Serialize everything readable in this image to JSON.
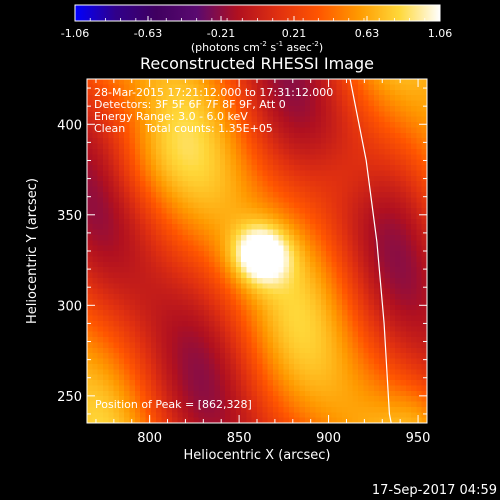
{
  "chart_data": {
    "type": "heatmap",
    "title": "Reconstructed RHESSI Image",
    "xlabel": "Heliocentric X (arcsec)",
    "ylabel": "Heliocentric Y (arcsec)",
    "xlim": [
      765,
      955
    ],
    "ylim": [
      235,
      425
    ],
    "xticks": [
      800,
      850,
      900,
      950
    ],
    "yticks": [
      250,
      300,
      350,
      400
    ],
    "colorbar": {
      "min": -1.06,
      "max": 1.06,
      "ticks": [
        "-1.06",
        "-0.63",
        "-0.21",
        "0.21",
        "0.63",
        "1.06"
      ],
      "unit_main": "(photons cm",
      "unit_sup1": "-2",
      "unit_mid": " s",
      "unit_sup2": "-1",
      "unit_end": " asec",
      "unit_sup3": "-2",
      "unit_close": ")",
      "colormap": [
        "#0000ff",
        "#30008a",
        "#400060",
        "#5a0a70",
        "#b01020",
        "#e03010",
        "#ff5500",
        "#ff9a00",
        "#ffd83a",
        "#ffffff"
      ]
    },
    "annotations": {
      "time_range": "28-Mar-2015 17:21:12.000 to 17:31:12.000",
      "detectors": "Detectors: 3F 5F 6F 7F 8F 9F, Att 0",
      "energy": "Energy Range: 3.0 - 6.0 keV",
      "method": "Clean",
      "counts": "Total counts: 1.35E+05",
      "peak": "Position of Peak = [862,328]"
    },
    "peak": {
      "x": 862,
      "y": 328,
      "value": 1.06
    },
    "limb": [
      [
        912,
        425
      ],
      [
        921,
        380
      ],
      [
        927,
        335
      ],
      [
        931,
        290
      ],
      [
        934,
        240
      ],
      [
        935,
        235
      ]
    ]
  },
  "footer": {
    "timestamp": "17-Sep-2017 04:59"
  }
}
